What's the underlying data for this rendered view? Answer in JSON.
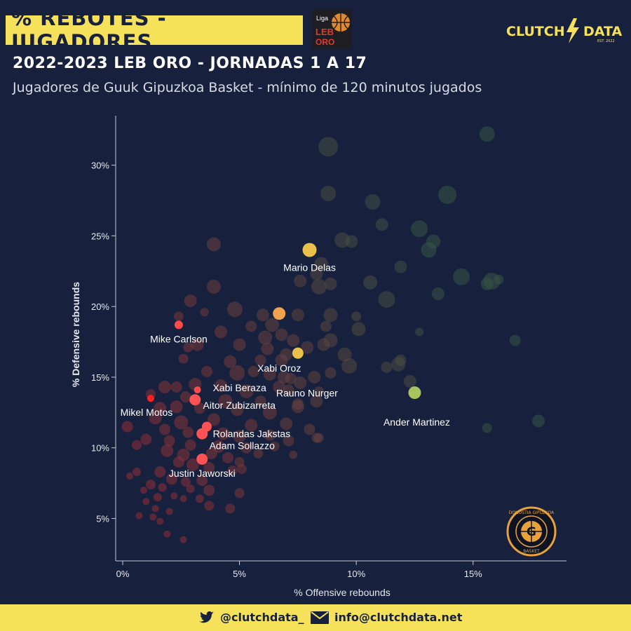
{
  "header": {
    "title": "% REBOTES - JUGADORES",
    "subtitle": "2022-2023 LEB ORO - JORNADAS 1 A 17",
    "description": "Jugadores de Guuk Gipuzkoa Basket - mínimo de 120 minutos jugados",
    "league_logo_text": [
      "Liga",
      "LEB",
      "ORO"
    ],
    "brand_left": "CLUTCH",
    "brand_right": "DATA",
    "brand_sub": "EST. 2022"
  },
  "badge": {
    "ring_text_top": "DONOSTIA GIPUZKOA",
    "ring_text_bottom": "BASKET",
    "center": "G"
  },
  "footer": {
    "twitter": "@clutchdata_",
    "email": "info@clutchdata.net"
  },
  "colors": {
    "background": "#17213d",
    "accent": "#f5e15a",
    "axis": "#c9ccd6"
  },
  "chart_data": {
    "type": "scatter",
    "xlabel": "% Offensive rebounds",
    "ylabel": "% Defensive rebounds",
    "xlim": [
      0,
      19
    ],
    "ylim": [
      2,
      33.5
    ],
    "xticks": [
      0,
      5,
      10,
      15
    ],
    "yticks": [
      5,
      10,
      15,
      20,
      25,
      30
    ],
    "xtick_labels": [
      "0%",
      "5%",
      "10%",
      "15%"
    ],
    "ytick_labels": [
      "5%",
      "10%",
      "15%",
      "20%",
      "25%",
      "30%"
    ],
    "grid": false,
    "highlighted": [
      {
        "name": "Mario Delas",
        "x": 8.0,
        "y": 24.0,
        "size": 10,
        "color": "#e8c04a"
      },
      {
        "name": "Xabi Oroz",
        "x": 6.7,
        "y": 19.5,
        "size": 9,
        "color": "#f0a24f"
      },
      {
        "name": "Rauno Nurger",
        "x": 7.5,
        "y": 16.7,
        "size": 8,
        "color": "#e8c04a"
      },
      {
        "name": "Mike Carlson",
        "x": 2.4,
        "y": 18.7,
        "size": 6,
        "color": "#ff4a4a"
      },
      {
        "name": "Xabi Beraza",
        "x": 3.2,
        "y": 14.1,
        "size": 5,
        "color": "#ff4a4a"
      },
      {
        "name": "Mikel Motos",
        "x": 1.2,
        "y": 13.5,
        "size": 5,
        "color": "#ff2020"
      },
      {
        "name": "Aitor Zubizarreta",
        "x": 3.1,
        "y": 13.4,
        "size": 8,
        "color": "#ff5252"
      },
      {
        "name": "Rolandas Jakstas",
        "x": 3.6,
        "y": 11.5,
        "size": 7,
        "color": "#ff5252"
      },
      {
        "name": "Adam Sollazzo",
        "x": 3.4,
        "y": 11.0,
        "size": 8,
        "color": "#ff5252"
      },
      {
        "name": "Justin Jaworski",
        "x": 3.4,
        "y": 9.2,
        "size": 8,
        "color": "#ff5252"
      },
      {
        "name": "Ander Martinez",
        "x": 12.5,
        "y": 13.9,
        "size": 9,
        "color": "#a8c35e"
      }
    ],
    "background_points": [
      [
        15.6,
        32.2,
        11
      ],
      [
        8.8,
        31.3,
        14
      ],
      [
        8.8,
        28.0,
        11
      ],
      [
        10.7,
        27.4,
        11
      ],
      [
        13.9,
        27.9,
        13
      ],
      [
        12.7,
        25.5,
        12
      ],
      [
        11.1,
        25.8,
        9
      ],
      [
        13.3,
        24.6,
        10
      ],
      [
        13.1,
        24.0,
        11
      ],
      [
        9.4,
        24.7,
        11
      ],
      [
        9.8,
        24.6,
        9
      ],
      [
        3.9,
        24.4,
        10
      ],
      [
        8.5,
        23.0,
        10
      ],
      [
        8.3,
        22.3,
        9
      ],
      [
        11.9,
        22.8,
        9
      ],
      [
        14.5,
        22.1,
        12
      ],
      [
        15.6,
        21.6,
        9
      ],
      [
        15.8,
        21.8,
        12
      ],
      [
        16.1,
        21.9,
        7
      ],
      [
        10.6,
        21.7,
        10
      ],
      [
        8.9,
        21.6,
        9
      ],
      [
        8.4,
        21.4,
        11
      ],
      [
        7.6,
        21.8,
        9
      ],
      [
        3.9,
        21.4,
        10
      ],
      [
        11.3,
        20.5,
        12
      ],
      [
        13.5,
        20.9,
        9
      ],
      [
        2.9,
        20.4,
        9
      ],
      [
        4.8,
        19.8,
        11
      ],
      [
        2.4,
        19.3,
        7
      ],
      [
        6.0,
        19.4,
        9
      ],
      [
        7.5,
        19.4,
        9
      ],
      [
        8.9,
        19.4,
        10
      ],
      [
        10.0,
        19.3,
        7
      ],
      [
        3.5,
        19.6,
        6
      ],
      [
        10.1,
        18.4,
        10
      ],
      [
        8.7,
        18.6,
        8
      ],
      [
        6.4,
        18.7,
        10
      ],
      [
        6.8,
        18.0,
        9
      ],
      [
        5.5,
        18.6,
        8
      ],
      [
        4.2,
        18.2,
        9
      ],
      [
        6.1,
        17.8,
        10
      ],
      [
        8.9,
        17.6,
        10
      ],
      [
        12.7,
        18.2,
        6
      ],
      [
        16.8,
        17.6,
        8
      ],
      [
        2.8,
        17.1,
        7
      ],
      [
        3.2,
        17.3,
        9
      ],
      [
        5.0,
        17.3,
        9
      ],
      [
        6.2,
        17.0,
        9
      ],
      [
        7.0,
        16.6,
        9
      ],
      [
        7.3,
        17.6,
        9
      ],
      [
        7.9,
        17.1,
        9
      ],
      [
        8.6,
        17.3,
        9
      ],
      [
        9.5,
        16.6,
        10
      ],
      [
        5.9,
        16.2,
        8
      ],
      [
        6.8,
        16.2,
        9
      ],
      [
        4.6,
        16.1,
        9
      ],
      [
        2.6,
        16.3,
        7
      ],
      [
        9.7,
        15.8,
        11
      ],
      [
        11.3,
        15.7,
        8
      ],
      [
        11.8,
        15.9,
        10
      ],
      [
        11.9,
        16.2,
        8
      ],
      [
        3.6,
        15.4,
        8
      ],
      [
        4.9,
        15.3,
        11
      ],
      [
        5.6,
        15.4,
        8
      ],
      [
        6.3,
        15.2,
        9
      ],
      [
        6.9,
        15.0,
        9
      ],
      [
        7.2,
        14.9,
        8
      ],
      [
        8.2,
        15.0,
        9
      ],
      [
        8.9,
        15.3,
        8
      ],
      [
        12.3,
        14.7,
        9
      ],
      [
        1.8,
        14.3,
        9
      ],
      [
        2.3,
        14.3,
        8
      ],
      [
        3.1,
        14.5,
        9
      ],
      [
        4.2,
        14.4,
        9
      ],
      [
        5.3,
        14.0,
        10
      ],
      [
        6.7,
        14.3,
        9
      ],
      [
        7.1,
        14.1,
        8
      ],
      [
        7.6,
        14.6,
        9
      ],
      [
        8.4,
        14.0,
        7
      ],
      [
        1.2,
        13.8,
        7
      ],
      [
        2.7,
        13.6,
        8
      ],
      [
        4.4,
        13.3,
        10
      ],
      [
        5.9,
        13.3,
        8
      ],
      [
        7.5,
        13.1,
        8
      ],
      [
        1.6,
        12.8,
        9
      ],
      [
        2.3,
        12.9,
        9
      ],
      [
        3.3,
        12.8,
        8
      ],
      [
        4.9,
        12.7,
        9
      ],
      [
        6.3,
        12.5,
        10
      ],
      [
        7.5,
        12.9,
        9
      ],
      [
        8.3,
        13.3,
        9
      ],
      [
        1.4,
        12.1,
        9
      ],
      [
        2.5,
        11.8,
        10
      ],
      [
        3.9,
        12.0,
        9
      ],
      [
        5.5,
        11.6,
        9
      ],
      [
        7.0,
        11.7,
        9
      ],
      [
        8.0,
        11.3,
        8
      ],
      [
        0.2,
        11.5,
        8
      ],
      [
        1.8,
        11.3,
        8
      ],
      [
        2.8,
        11.1,
        8
      ],
      [
        4.3,
        11.0,
        9
      ],
      [
        5.0,
        10.8,
        9
      ],
      [
        6.3,
        10.9,
        8
      ],
      [
        7.1,
        10.5,
        8
      ],
      [
        1.0,
        10.6,
        8
      ],
      [
        2.0,
        10.5,
        8
      ],
      [
        2.9,
        10.2,
        8
      ],
      [
        4.1,
        10.1,
        9
      ],
      [
        5.3,
        10.0,
        8
      ],
      [
        6.5,
        10.1,
        7
      ],
      [
        0.6,
        10.2,
        7
      ],
      [
        8.4,
        10.7,
        7
      ],
      [
        1.9,
        9.8,
        9
      ],
      [
        2.6,
        9.5,
        9
      ],
      [
        3.8,
        9.6,
        8
      ],
      [
        4.5,
        9.3,
        8
      ],
      [
        5.0,
        9.0,
        7
      ],
      [
        5.8,
        9.6,
        7
      ],
      [
        7.3,
        9.5,
        6
      ],
      [
        2.4,
        9.0,
        8
      ],
      [
        3.0,
        8.8,
        9
      ],
      [
        3.7,
        8.6,
        8
      ],
      [
        4.7,
        8.4,
        7
      ],
      [
        5.1,
        8.5,
        7
      ],
      [
        0.6,
        8.3,
        6
      ],
      [
        1.6,
        8.3,
        8
      ],
      [
        2.1,
        7.8,
        8
      ],
      [
        2.7,
        7.6,
        7
      ],
      [
        3.4,
        7.7,
        8
      ],
      [
        0.3,
        8.0,
        5
      ],
      [
        1.2,
        7.4,
        7
      ],
      [
        1.7,
        7.2,
        6
      ],
      [
        2.9,
        7.1,
        6
      ],
      [
        3.7,
        7.0,
        8
      ],
      [
        5.0,
        6.8,
        7
      ],
      [
        0.9,
        7.0,
        5
      ],
      [
        1.5,
        6.5,
        6
      ],
      [
        2.2,
        6.6,
        5
      ],
      [
        2.6,
        6.4,
        5
      ],
      [
        3.3,
        6.4,
        6
      ],
      [
        1.0,
        6.2,
        5
      ],
      [
        1.4,
        5.7,
        5
      ],
      [
        2.0,
        5.5,
        5
      ],
      [
        3.7,
        5.9,
        7
      ],
      [
        4.6,
        5.7,
        7
      ],
      [
        0.7,
        5.2,
        5
      ],
      [
        1.3,
        5.1,
        5
      ],
      [
        1.6,
        4.8,
        5
      ],
      [
        1.9,
        3.9,
        5
      ],
      [
        2.6,
        3.5,
        5
      ],
      [
        15.6,
        11.4,
        7
      ],
      [
        17.8,
        11.9,
        9
      ],
      [
        8.3,
        10.7,
        7
      ]
    ]
  }
}
